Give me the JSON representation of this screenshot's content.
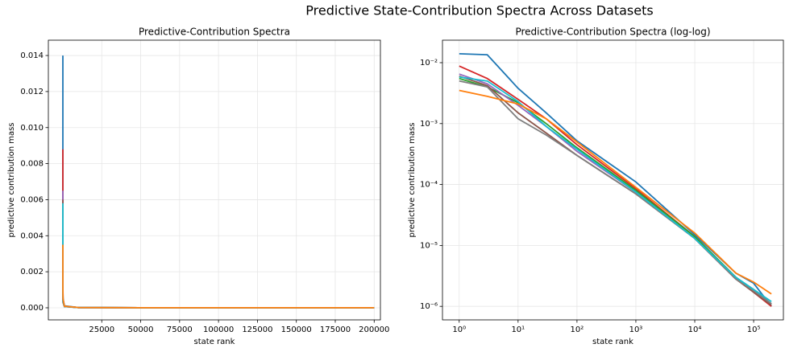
{
  "title": "Predictive State-Contribution Spectra Across Datasets",
  "chart_data": [
    {
      "type": "line",
      "title": "Predictive-Contribution Spectra",
      "xlabel": "state rank",
      "ylabel": "predictive contribution mass",
      "log": false,
      "grid": true,
      "xlim": [
        -9300,
        204000
      ],
      "ylim": [
        -0.00067,
        0.01485
      ],
      "xticks": [
        25000,
        50000,
        75000,
        100000,
        125000,
        150000,
        175000,
        200000
      ],
      "yticks": [
        {
          "value": 0,
          "label": "0.000"
        },
        {
          "value": 0.002,
          "label": "0.002"
        },
        {
          "value": 0.004,
          "label": "0.004"
        },
        {
          "value": 0.006,
          "label": "0.006"
        },
        {
          "value": 0.008,
          "label": "0.008"
        },
        {
          "value": 0.01,
          "label": "0.010"
        },
        {
          "value": 0.012,
          "label": "0.012"
        },
        {
          "value": 0.014,
          "label": "0.014"
        }
      ],
      "x": [
        1,
        3,
        10,
        30,
        100,
        1000,
        10000,
        50000,
        100000,
        200000
      ],
      "series": [
        {
          "color": "#1f77b4",
          "values": [
            0.014,
            0.0135,
            0.0038,
            0.0015,
            0.00052,
            0.00011,
            1.5e-05,
            3.5e-06,
            2.4e-06,
            1e-06
          ]
        },
        {
          "color": "#d62728",
          "values": [
            0.0088,
            0.0055,
            0.0025,
            0.0012,
            0.00045,
            8.5e-05,
            1.4e-05,
            3e-06,
            1.7e-06,
            1e-06
          ]
        },
        {
          "color": "#2ca02c",
          "values": [
            0.0055,
            0.004,
            0.0022,
            0.001,
            0.0004,
            8e-05,
            1.4e-05,
            3e-06,
            1.8e-06,
            1.1e-06
          ]
        },
        {
          "color": "#9467bd",
          "values": [
            0.0065,
            0.0045,
            0.002,
            0.0009,
            0.00035,
            7.5e-05,
            1.3e-05,
            2.8e-06,
            1.8e-06,
            1.1e-06
          ]
        },
        {
          "color": "#8c564b",
          "values": [
            0.006,
            0.0042,
            0.0015,
            0.0007,
            0.0003,
            7e-05,
            1.3e-05,
            2.8e-06,
            1.7e-06,
            1.05e-06
          ]
        },
        {
          "color": "#7f7f7f",
          "values": [
            0.005,
            0.004,
            0.0012,
            0.00065,
            0.0003,
            7e-05,
            1.3e-05,
            2.8e-06,
            1.8e-06,
            1.1e-06
          ]
        },
        {
          "color": "#17becf",
          "values": [
            0.0058,
            0.005,
            0.0023,
            0.0009,
            0.00038,
            7.5e-05,
            1.3e-05,
            3e-06,
            1.9e-06,
            1.2e-06
          ]
        },
        {
          "color": "#ff7f0e",
          "values": [
            0.0035,
            0.0028,
            0.0021,
            0.0012,
            0.0005,
            9e-05,
            1.6e-05,
            3.5e-06,
            2.5e-06,
            1.6e-06
          ]
        }
      ]
    },
    {
      "type": "line",
      "title": "Predictive-Contribution Spectra (log-log)",
      "xlabel": "state rank",
      "ylabel": "predictive contribution mass",
      "log": true,
      "grid": true,
      "xlim": [
        0.52,
        320000
      ],
      "ylim": [
        6e-07,
        0.0234
      ],
      "xticks": [
        {
          "value": 1,
          "label": "10⁰"
        },
        {
          "value": 10,
          "label": "10¹"
        },
        {
          "value": 100,
          "label": "10²"
        },
        {
          "value": 1000,
          "label": "10³"
        },
        {
          "value": 10000,
          "label": "10⁴"
        },
        {
          "value": 100000,
          "label": "10⁵"
        }
      ],
      "yticks": [
        {
          "value": 1e-06,
          "label": "10⁻⁶"
        },
        {
          "value": 1e-05,
          "label": "10⁻⁵"
        },
        {
          "value": 0.0001,
          "label": "10⁻⁴"
        },
        {
          "value": 0.001,
          "label": "10⁻³"
        },
        {
          "value": 0.01,
          "label": "10⁻²"
        }
      ],
      "x": [
        1,
        3,
        10,
        30,
        100,
        1000,
        10000,
        50000,
        100000,
        200000
      ],
      "series": [
        {
          "color": "#1f77b4",
          "values": [
            0.014,
            0.0135,
            0.0038,
            0.0015,
            0.00052,
            0.00011,
            1.5e-05,
            3.5e-06,
            2.4e-06,
            1e-06
          ]
        },
        {
          "color": "#d62728",
          "values": [
            0.0088,
            0.0055,
            0.0025,
            0.0012,
            0.00045,
            8.5e-05,
            1.4e-05,
            3e-06,
            1.7e-06,
            1e-06
          ]
        },
        {
          "color": "#2ca02c",
          "values": [
            0.0055,
            0.004,
            0.0022,
            0.001,
            0.0004,
            8e-05,
            1.4e-05,
            3e-06,
            1.8e-06,
            1.1e-06
          ]
        },
        {
          "color": "#9467bd",
          "values": [
            0.0065,
            0.0045,
            0.002,
            0.0009,
            0.00035,
            7.5e-05,
            1.3e-05,
            2.8e-06,
            1.8e-06,
            1.1e-06
          ]
        },
        {
          "color": "#8c564b",
          "values": [
            0.006,
            0.0042,
            0.0015,
            0.0007,
            0.0003,
            7e-05,
            1.3e-05,
            2.8e-06,
            1.7e-06,
            1.05e-06
          ]
        },
        {
          "color": "#7f7f7f",
          "values": [
            0.005,
            0.004,
            0.0012,
            0.00065,
            0.0003,
            7e-05,
            1.3e-05,
            2.8e-06,
            1.8e-06,
            1.1e-06
          ]
        },
        {
          "color": "#17becf",
          "values": [
            0.0058,
            0.005,
            0.0023,
            0.0009,
            0.00038,
            7.5e-05,
            1.3e-05,
            3e-06,
            1.9e-06,
            1.2e-06
          ]
        },
        {
          "color": "#ff7f0e",
          "values": [
            0.0035,
            0.0028,
            0.0021,
            0.0012,
            0.0005,
            9e-05,
            1.6e-05,
            3.5e-06,
            2.5e-06,
            1.6e-06
          ]
        }
      ]
    }
  ]
}
